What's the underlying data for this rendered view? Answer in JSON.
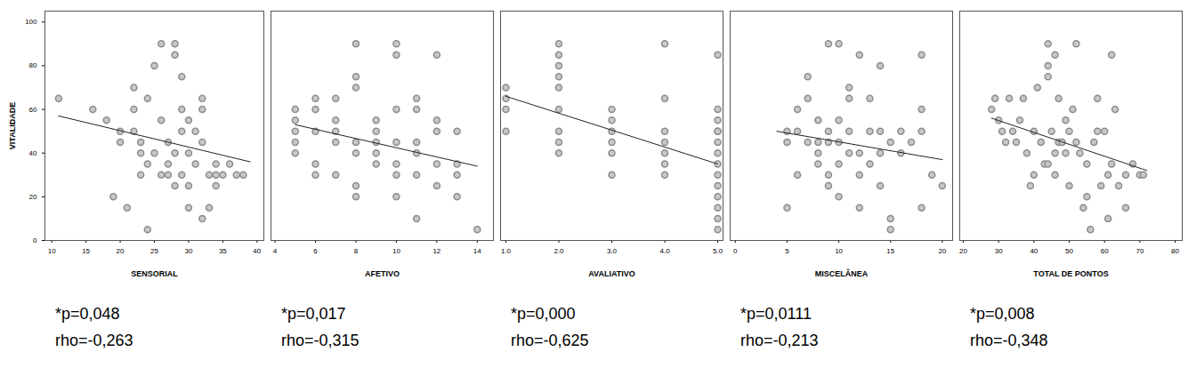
{
  "chart_data": [
    {
      "type": "scatter",
      "x_label": "SENSORIAL",
      "y_label": "VITALIDADE",
      "color": "#8c8c8c",
      "marker": "circle",
      "line_style": "solid",
      "xlim": [
        9,
        41
      ],
      "xticks": [
        10,
        15,
        20,
        25,
        30,
        35,
        40
      ],
      "ylim": [
        0,
        105
      ],
      "yticks": [
        0,
        20,
        40,
        60,
        80,
        100
      ],
      "grid": false,
      "x": [
        11,
        16,
        18,
        19,
        20,
        20,
        21,
        22,
        22,
        22,
        23,
        23,
        24,
        24,
        24,
        25,
        26,
        26,
        27,
        27,
        28,
        28,
        28,
        29,
        29,
        29,
        30,
        30,
        31,
        32,
        32,
        32,
        32,
        33,
        33,
        34,
        34,
        35,
        36,
        37,
        38,
        28,
        30,
        27,
        25,
        26,
        23,
        31,
        34,
        29,
        30
      ],
      "values": [
        65,
        60,
        55,
        20,
        45,
        50,
        15,
        60,
        70,
        50,
        45,
        40,
        35,
        5,
        65,
        80,
        55,
        90,
        45,
        30,
        25,
        85,
        90,
        50,
        75,
        60,
        55,
        25,
        50,
        65,
        60,
        45,
        10,
        30,
        15,
        35,
        25,
        30,
        35,
        30,
        30,
        40,
        15,
        35,
        40,
        30,
        30,
        35,
        30,
        30,
        40
      ],
      "trend_line": {
        "x": [
          11,
          39
        ],
        "values": [
          57,
          36
        ]
      },
      "annotations": [
        "*p=0,048",
        "rho=-0,263"
      ]
    },
    {
      "type": "scatter",
      "x_label": "AFETIVO",
      "color": "#8c8c8c",
      "marker": "circle",
      "line_style": "solid",
      "tick_labels": "x",
      "xlim": [
        3.8,
        14.8
      ],
      "xticks": [
        4,
        6,
        8,
        10,
        12,
        14
      ],
      "ylim": [
        0,
        105
      ],
      "yticks": [
        0,
        20,
        40,
        60,
        80,
        100
      ],
      "grid": false,
      "x": [
        5,
        5,
        5,
        5,
        5,
        6,
        6,
        6,
        6,
        7,
        7,
        7,
        7,
        8,
        8,
        8,
        8,
        8,
        8,
        8,
        9,
        9,
        9,
        9,
        10,
        10,
        10,
        10,
        10,
        10,
        10,
        11,
        11,
        11,
        11,
        11,
        11,
        12,
        12,
        12,
        12,
        13,
        13,
        13,
        13,
        14,
        9,
        12,
        6,
        7
      ],
      "values": [
        60,
        55,
        50,
        45,
        40,
        35,
        60,
        65,
        30,
        55,
        50,
        65,
        30,
        90,
        75,
        70,
        45,
        40,
        25,
        20,
        55,
        50,
        45,
        35,
        90,
        85,
        60,
        45,
        35,
        30,
        20,
        65,
        60,
        45,
        40,
        10,
        30,
        85,
        50,
        35,
        25,
        50,
        35,
        30,
        20,
        5,
        40,
        55,
        50,
        45
      ],
      "trend_line": {
        "x": [
          5,
          14
        ],
        "values": [
          53,
          34
        ]
      },
      "annotations": [
        "*p=0,017",
        "rho=-0,315"
      ]
    },
    {
      "type": "scatter",
      "x_label": "AVALIATIVO",
      "color": "#8c8c8c",
      "marker": "circle",
      "line_style": "solid",
      "tick_labels": "x",
      "xlim": [
        0.9,
        5.1
      ],
      "xticks": [
        1,
        2,
        3,
        4,
        5
      ],
      "ylim": [
        0,
        105
      ],
      "yticks": [
        0,
        20,
        40,
        60,
        80,
        100
      ],
      "grid": false,
      "x": [
        1,
        1,
        1,
        1,
        2,
        2,
        2,
        2,
        2,
        2,
        2,
        2,
        2,
        3,
        3,
        3,
        3,
        3,
        3,
        4,
        4,
        4,
        4,
        4,
        4,
        4,
        5,
        5,
        5,
        5,
        5,
        5,
        5,
        5,
        5,
        5,
        5,
        5,
        5,
        5
      ],
      "values": [
        70,
        65,
        60,
        50,
        90,
        85,
        80,
        75,
        70,
        60,
        50,
        45,
        40,
        60,
        55,
        50,
        45,
        40,
        30,
        90,
        65,
        50,
        45,
        40,
        35,
        30,
        85,
        60,
        55,
        50,
        45,
        40,
        35,
        30,
        25,
        20,
        15,
        10,
        5,
        50
      ],
      "trend_line": {
        "x": [
          1,
          5
        ],
        "values": [
          66,
          35
        ]
      },
      "annotations": [
        "*p=0,000",
        "rho=-0,625"
      ]
    },
    {
      "type": "scatter",
      "x_label": "MISCELÂNEA",
      "color": "#8c8c8c",
      "marker": "circle",
      "line_style": "solid",
      "tick_labels": "x",
      "xlim": [
        -0.5,
        21
      ],
      "xticks": [
        0,
        5,
        10,
        15,
        20
      ],
      "ylim": [
        0,
        105
      ],
      "yticks": [
        0,
        20,
        40,
        60,
        80,
        100
      ],
      "grid": false,
      "x": [
        5,
        5,
        5,
        6,
        6,
        7,
        7,
        7,
        8,
        8,
        8,
        9,
        9,
        9,
        9,
        9,
        10,
        10,
        10,
        10,
        11,
        11,
        11,
        11,
        12,
        12,
        12,
        12,
        13,
        13,
        13,
        14,
        14,
        14,
        14,
        15,
        15,
        15,
        16,
        16,
        17,
        18,
        18,
        18,
        18,
        19,
        20,
        6,
        8,
        10
      ],
      "values": [
        50,
        45,
        15,
        60,
        50,
        75,
        65,
        45,
        55,
        40,
        35,
        90,
        50,
        45,
        30,
        25,
        90,
        55,
        45,
        20,
        70,
        65,
        50,
        40,
        85,
        40,
        30,
        15,
        65,
        50,
        35,
        80,
        50,
        40,
        25,
        10,
        5,
        45,
        50,
        40,
        45,
        85,
        60,
        50,
        15,
        30,
        25,
        30,
        45,
        35
      ],
      "trend_line": {
        "x": [
          4,
          20
        ],
        "values": [
          50,
          37
        ]
      },
      "annotations": [
        "*p=0,0111",
        "rho=-0,213"
      ]
    },
    {
      "type": "scatter",
      "x_label": "TOTAL DE PONTOS",
      "color": "#8c8c8c",
      "marker": "circle",
      "line_style": "solid",
      "tick_labels": "x",
      "xlim": [
        19,
        82
      ],
      "xticks": [
        20,
        30,
        40,
        50,
        60,
        70,
        80
      ],
      "ylim": [
        0,
        105
      ],
      "yticks": [
        0,
        20,
        40,
        60,
        80,
        100
      ],
      "grid": false,
      "x": [
        28,
        29,
        30,
        31,
        32,
        33,
        34,
        35,
        36,
        37,
        38,
        39,
        40,
        40,
        41,
        42,
        43,
        44,
        44,
        44,
        45,
        46,
        46,
        46,
        47,
        47,
        48,
        49,
        49,
        50,
        50,
        51,
        52,
        52,
        53,
        54,
        55,
        55,
        56,
        57,
        58,
        58,
        59,
        60,
        61,
        61,
        62,
        62,
        63,
        64,
        66,
        66,
        68,
        70,
        71,
        44
      ],
      "values": [
        60,
        65,
        55,
        50,
        45,
        65,
        50,
        45,
        55,
        65,
        40,
        25,
        50,
        30,
        70,
        45,
        35,
        90,
        80,
        75,
        50,
        85,
        40,
        30,
        65,
        45,
        45,
        40,
        55,
        50,
        25,
        60,
        90,
        45,
        40,
        15,
        35,
        20,
        5,
        45,
        65,
        50,
        25,
        50,
        30,
        10,
        35,
        85,
        60,
        25,
        30,
        15,
        35,
        30,
        30,
        35
      ],
      "trend_line": {
        "x": [
          28,
          72
        ],
        "values": [
          56,
          32
        ]
      },
      "annotations": [
        "*p=0,008",
        "rho=-0,348"
      ]
    }
  ]
}
